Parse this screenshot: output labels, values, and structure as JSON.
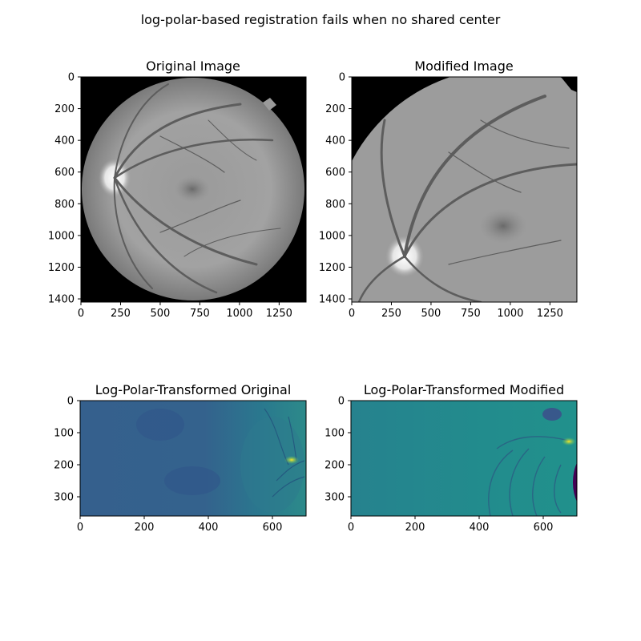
{
  "figure": {
    "suptitle": "log-polar-based registration fails when no shared center"
  },
  "panels": [
    {
      "id": "orig",
      "title": "Original Image",
      "xticks": [
        0,
        250,
        500,
        750,
        1000,
        1250
      ],
      "yticks": [
        0,
        200,
        400,
        600,
        800,
        1000,
        1200,
        1400
      ],
      "xrange": [
        0,
        1420
      ],
      "yrange": [
        0,
        1420
      ],
      "colormap": "gray"
    },
    {
      "id": "mod",
      "title": "Modified Image",
      "xticks": [
        0,
        250,
        500,
        750,
        1000,
        1250
      ],
      "yticks": [
        0,
        200,
        400,
        600,
        800,
        1000,
        1200,
        1400
      ],
      "xrange": [
        0,
        1420
      ],
      "yrange": [
        0,
        1420
      ],
      "colormap": "gray"
    },
    {
      "id": "lp-orig",
      "title": "Log-Polar-Transformed Original",
      "xticks": [
        0,
        200,
        400,
        600
      ],
      "yticks": [
        0,
        100,
        200,
        300
      ],
      "xrange": [
        0,
        705
      ],
      "yrange": [
        0,
        360
      ],
      "colormap": "viridis"
    },
    {
      "id": "lp-mod",
      "title": "Log-Polar-Transformed Modified",
      "xticks": [
        0,
        200,
        400,
        600
      ],
      "yticks": [
        0,
        100,
        200,
        300
      ],
      "xrange": [
        0,
        705
      ],
      "yrange": [
        0,
        360
      ],
      "colormap": "viridis"
    }
  ],
  "colors": {
    "background": "#000000",
    "retina_light": "#a9a9a9",
    "retina_mid": "#8c8c8c",
    "vessel": "#5a5a5a",
    "viridis_dark": "#440154",
    "viridis_blue": "#33638d",
    "viridis_teal": "#21918c",
    "viridis_green": "#5ec962",
    "viridis_yellow": "#fde725"
  }
}
